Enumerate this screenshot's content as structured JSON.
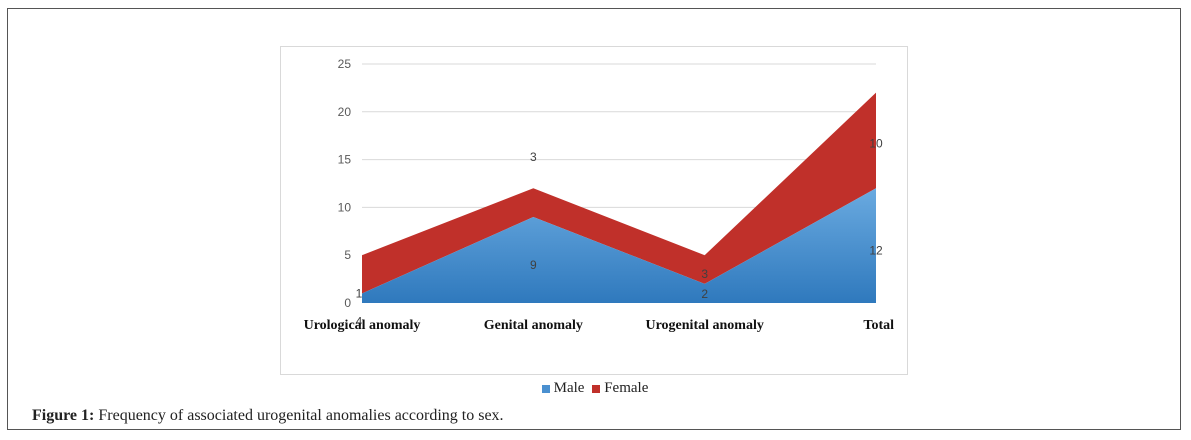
{
  "chart_data": {
    "type": "area",
    "stacked": true,
    "categories": [
      "Urological anomaly",
      "Genital anomaly",
      "Urogenital anomaly",
      "Total"
    ],
    "series": [
      {
        "name": "Male",
        "values": [
          1,
          9,
          2,
          12
        ],
        "color": "#4a90d0"
      },
      {
        "name": "Female",
        "values": [
          4,
          3,
          3,
          10
        ],
        "color": "#c0302a"
      }
    ],
    "ylim": [
      0,
      25
    ],
    "yticks": [
      "0",
      "5",
      "10",
      "15",
      "20",
      "25"
    ],
    "grid": true,
    "legend": "bottom-center"
  },
  "caption": {
    "label": "Figure 1:",
    "text": " Frequency of associated urogenital anomalies according to sex."
  }
}
